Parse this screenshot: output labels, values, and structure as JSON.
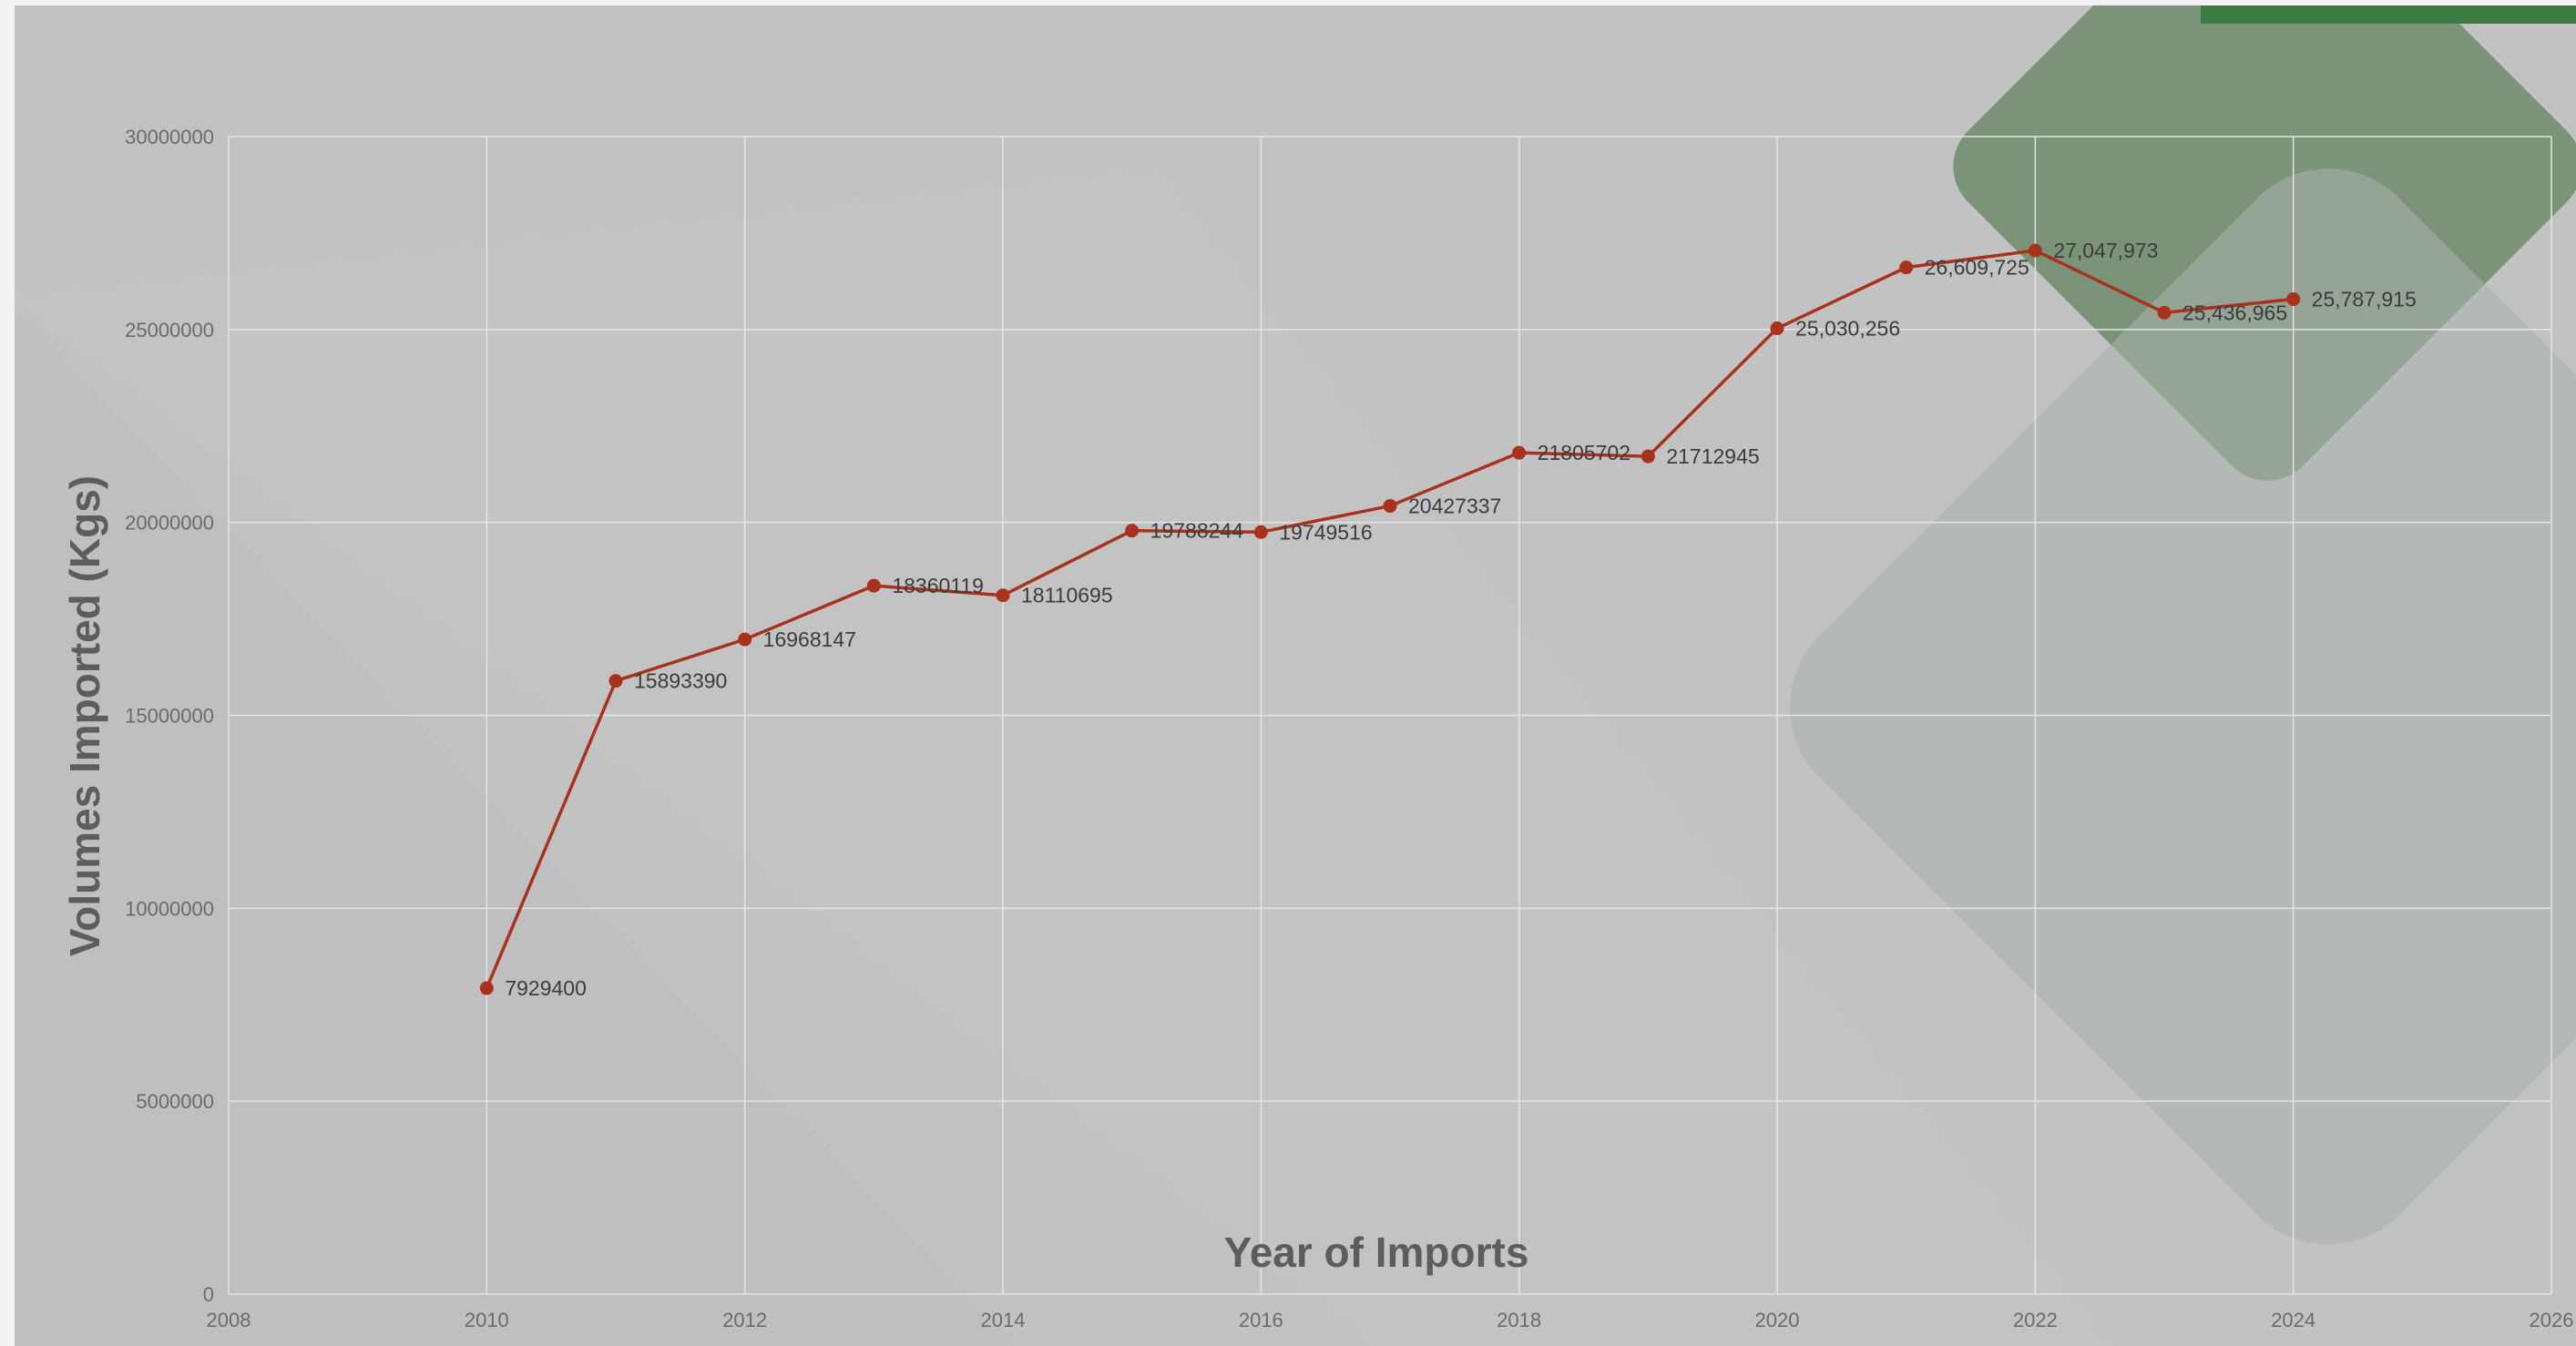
{
  "chart_data": {
    "type": "scatter",
    "title": "",
    "xlabel": "Year of Imports",
    "ylabel": "Volumes Imported (Kgs)",
    "xlim": [
      2008,
      2026
    ],
    "ylim": [
      0,
      30000000
    ],
    "x_ticks": [
      "2008",
      "2010",
      "2012",
      "2014",
      "2016",
      "2018",
      "2020",
      "2022",
      "2024",
      "2026"
    ],
    "y_ticks": [
      "0",
      "5000000",
      "10000000",
      "15000000",
      "20000000",
      "25000000",
      "30000000"
    ],
    "grid": true,
    "legend": "none",
    "series": [
      {
        "x": [
          2010,
          2011,
          2012,
          2013,
          2014,
          2015,
          2016,
          2017,
          2018,
          2019,
          2020,
          2021,
          2022,
          2023,
          2024
        ],
        "y": [
          7929400,
          15893390,
          16968147,
          18360119,
          18110695,
          19788244,
          19749516,
          20427337,
          21805702,
          21712945,
          25030256,
          26609725,
          27047973,
          25436965,
          25787915
        ],
        "labels": [
          "7929400",
          "15893390",
          "16968147",
          "18360119",
          "18110695",
          "19788244",
          "19749516",
          "20427337",
          "21805702",
          "21712945",
          "25,030,256",
          "26,609,725",
          "27,047,973",
          "25,436,965",
          "25,787,915"
        ]
      }
    ],
    "colors": {
      "line": "#a8321c",
      "marker": "#a8321c",
      "grid": "#e4e4e4"
    }
  }
}
